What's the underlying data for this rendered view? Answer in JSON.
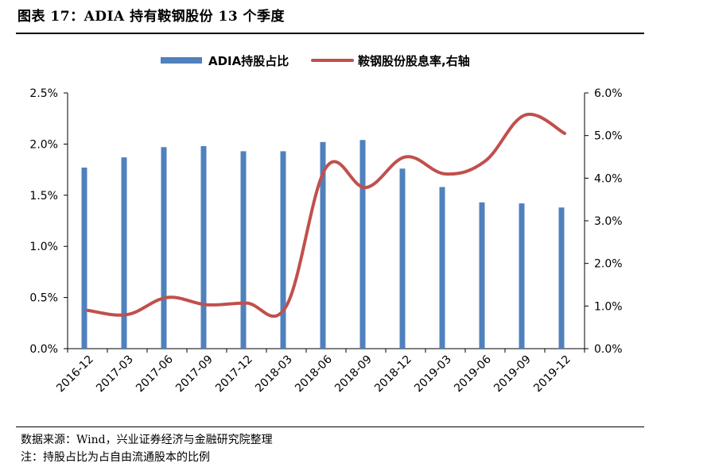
{
  "title": "图表 17：ADIA 持有鞍钢股份 13 个季度",
  "footer": {
    "source": "数据来源：Wind，兴业证券经济与金融研究院整理",
    "note": "注：持股占比为占自由流通股本的比例"
  },
  "colors": {
    "bar": "#4f81bd",
    "line": "#c0504d"
  },
  "chart_data": {
    "type": "bar+line",
    "categories": [
      "2016-12",
      "2017-03",
      "2017-06",
      "2017-09",
      "2017-12",
      "2018-03",
      "2018-06",
      "2018-09",
      "2018-12",
      "2019-03",
      "2019-06",
      "2019-09",
      "2019-12"
    ],
    "series": [
      {
        "name": "ADIA持股占比",
        "type": "bar",
        "axis": "left",
        "values": [
          1.77,
          1.87,
          1.97,
          1.98,
          1.93,
          1.93,
          2.02,
          2.04,
          1.76,
          1.58,
          1.43,
          1.42,
          1.38
        ]
      },
      {
        "name": "鞍钢股份股息率,右轴",
        "type": "line",
        "axis": "right",
        "values": [
          0.9,
          0.8,
          1.2,
          1.03,
          1.07,
          1.0,
          4.25,
          3.78,
          4.5,
          4.1,
          4.4,
          5.48,
          5.05
        ]
      }
    ],
    "left_axis": {
      "ylim": [
        0,
        2.5
      ],
      "ticks": [
        "0.0%",
        "0.5%",
        "1.0%",
        "1.5%",
        "2.0%",
        "2.5%"
      ]
    },
    "right_axis": {
      "ylim": [
        0,
        6
      ],
      "ticks": [
        "0.0%",
        "1.0%",
        "2.0%",
        "3.0%",
        "4.0%",
        "5.0%",
        "6.0%"
      ]
    },
    "legend_position": "top",
    "grid": false
  }
}
